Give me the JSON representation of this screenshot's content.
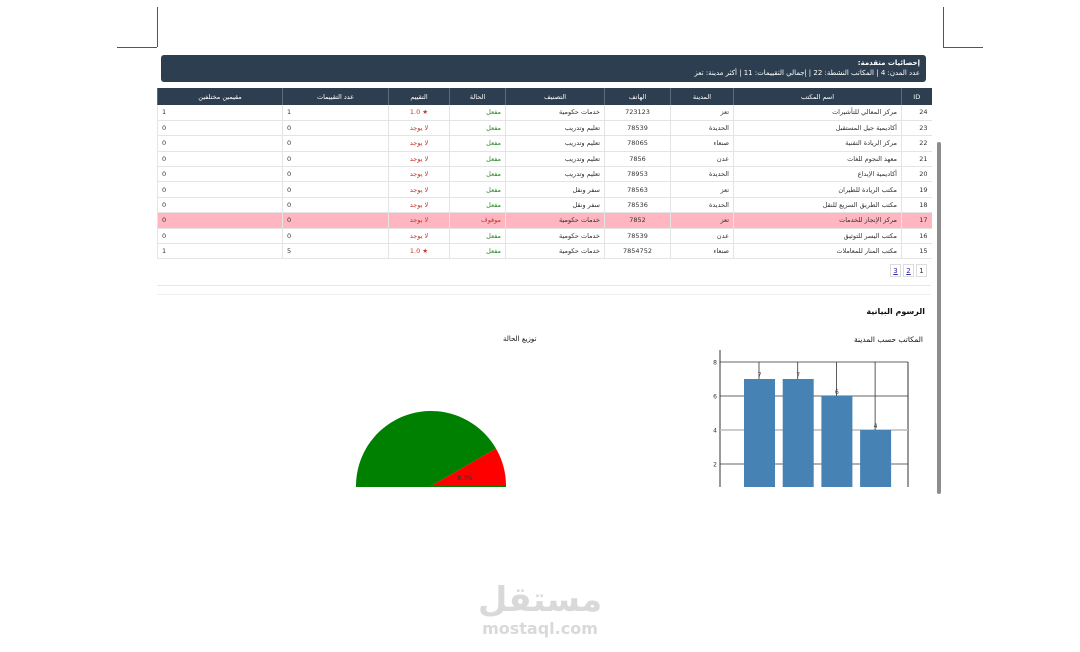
{
  "stats": {
    "title": "إحصائيات متقدمة:",
    "line": "عدد المدن: 4 | المكاتب النشطة: 22 | إجمالي التقييمات: 11 | أكثر مدينة: تعز"
  },
  "table": {
    "headers": [
      "ID",
      "اسم المكتب",
      "المدينة",
      "الهاتف",
      "التصنيف",
      "الحالة",
      "التقييم",
      "عدد التقييمات",
      "مقيمين مختلفين"
    ],
    "rows": [
      [
        "24",
        "مركز المعالي للتأشيرات",
        "تعز",
        "723123",
        "خدمات حكومية",
        "مفعل",
        "★ 1.0",
        "1",
        "1"
      ],
      [
        "23",
        "أكاديمية جيل المستقبل",
        "الحديدة",
        "78539",
        "تعليم وتدريب",
        "مفعل",
        "لا يوجد",
        "0",
        "0"
      ],
      [
        "22",
        "مركز الريادة التقنية",
        "صنعاء",
        "78065",
        "تعليم وتدريب",
        "مفعل",
        "لا يوجد",
        "0",
        "0"
      ],
      [
        "21",
        "معهد النجوم للغات",
        "عدن",
        "7856",
        "تعليم وتدريب",
        "مفعل",
        "لا يوجد",
        "0",
        "0"
      ],
      [
        "20",
        "أكاديمية الإبداع",
        "الحديدة",
        "78953",
        "تعليم وتدريب",
        "مفعل",
        "لا يوجد",
        "0",
        "0"
      ],
      [
        "19",
        "مكتب الريادة للطيران",
        "تعز",
        "78563",
        "سفر ونقل",
        "مفعل",
        "لا يوجد",
        "0",
        "0"
      ],
      [
        "18",
        "مكتب الطريق السريع للنقل",
        "الحديدة",
        "78536",
        "سفر ونقل",
        "مفعل",
        "لا يوجد",
        "0",
        "0"
      ],
      [
        "17",
        "مركز الإنجاز للخدمات",
        "تعز",
        "7852",
        "خدمات حكومية",
        "موقوف",
        "لا يوجد",
        "0",
        "0"
      ],
      [
        "16",
        "مكتب اليسر للتوثيق",
        "عدن",
        "78539",
        "خدمات حكومية",
        "مفعل",
        "لا يوجد",
        "0",
        "0"
      ],
      [
        "15",
        "مكتب المنار للمعاملات",
        "صنعاء",
        "7854752",
        "خدمات حكومية",
        "مفعل",
        "★ 1.0",
        "5",
        "1"
      ]
    ],
    "highlight_row": 7
  },
  "pager": [
    "1",
    "2",
    "3"
  ],
  "charts_title": "الرسوم البيانية",
  "chart_data": [
    {
      "type": "bar",
      "title": "المكاتب حسب المدينة",
      "values": [
        7,
        7,
        6,
        4
      ],
      "value_labels": [
        "7",
        "7",
        "6",
        "4"
      ],
      "yticks": [
        "2",
        "4",
        "6",
        "8"
      ],
      "ylim": [
        0,
        8
      ],
      "color": "#4682b4"
    },
    {
      "type": "pie",
      "title": "توزيع الحالة",
      "slices": [
        {
          "label": "91.7%",
          "value": 91.7,
          "color": "#008000"
        },
        {
          "label": "8.3%",
          "value": 8.3,
          "color": "#ff0000"
        }
      ]
    }
  ],
  "watermark": {
    "arabic": "مستقل",
    "latin": "mostaql.com"
  }
}
